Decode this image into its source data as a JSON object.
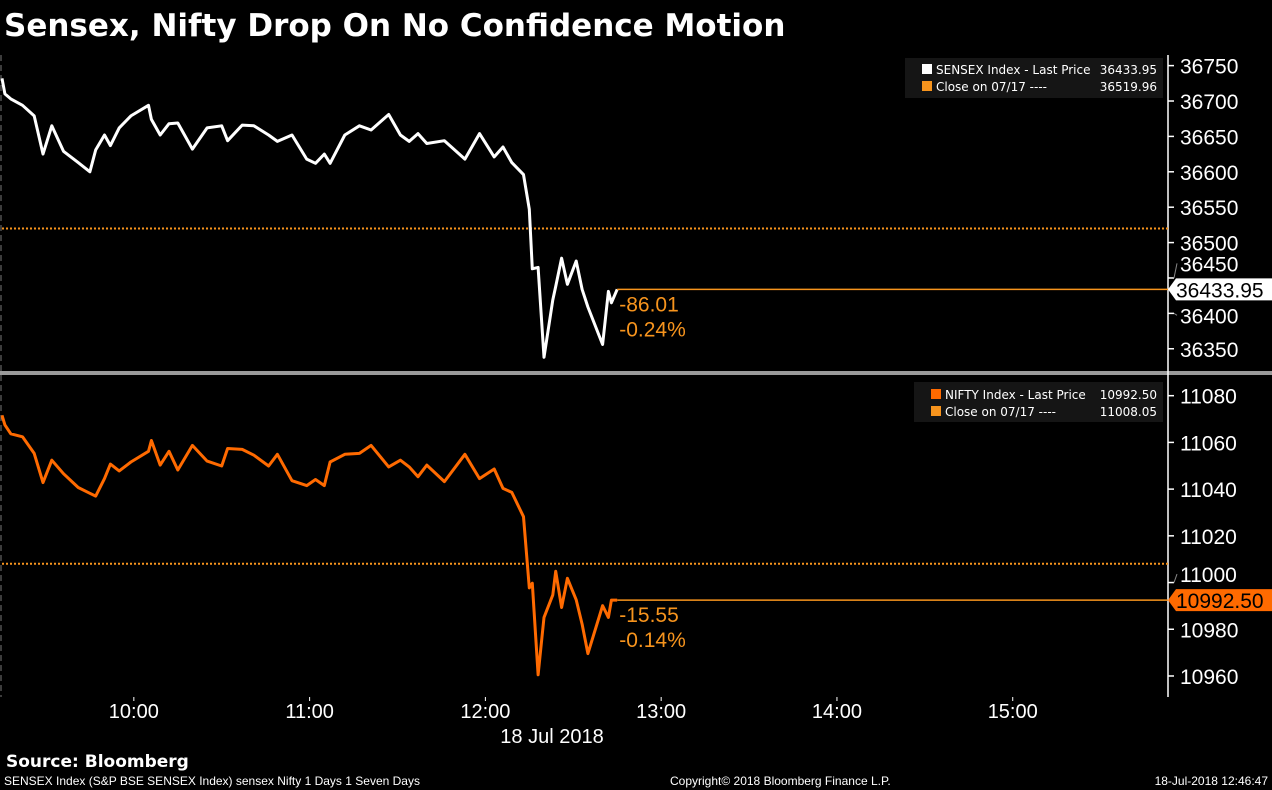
{
  "title": "Sensex, Nifty Drop On No Confidence Motion",
  "source": "Source: Bloomberg",
  "footer": {
    "left": "SENSEX Index (S&P BSE SENSEX Index) sensex Nifty 1 Days 1 Seven Days",
    "center": "Copyright© 2018 Bloomberg Finance L.P.",
    "right": "18-Jul-2018 12:46:47"
  },
  "colors": {
    "sensex_line": "#ffffff",
    "nifty_line": "#ff6a00",
    "close_line": "#f7941d",
    "change_text": "#f7941d",
    "legend_bg": "#151515"
  },
  "chart_data": [
    {
      "type": "line",
      "panel": "top",
      "xlim": [
        "09:15",
        "15:53"
      ],
      "ylim": [
        36320,
        36765
      ],
      "yticks": [
        "36750",
        "36700",
        "36650",
        "36600",
        "36550",
        "36500",
        "36450",
        "36400",
        "36350"
      ],
      "xticks": [
        "10:00",
        "11:00",
        "12:00",
        "13:00",
        "14:00",
        "15:00"
      ],
      "xlabel": "18 Jul 2018",
      "legend": {
        "placement": "top-right",
        "entries": [
          {
            "label": "SENSEX Index - Last Price",
            "value": "36433.95",
            "color": "#ffffff"
          },
          {
            "label": "Close on 07/17 ----",
            "value": "36519.96",
            "color": "#f7941d"
          }
        ]
      },
      "last_price": 36433.95,
      "last_price_label": "36433.95",
      "close": 36519.96,
      "change": "-86.01",
      "change_pct": "-0.24%",
      "x": [
        "09:15",
        "09:16",
        "09:18",
        "09:22",
        "09:26",
        "09:29",
        "09:32",
        "09:36",
        "09:41",
        "09:45",
        "09:47",
        "09:50",
        "09:52",
        "09:55",
        "09:59",
        "10:05",
        "10:06",
        "10:09",
        "10:12",
        "10:15",
        "10:20",
        "10:25",
        "10:30",
        "10:32",
        "10:37",
        "10:41",
        "10:46",
        "10:49",
        "10:54",
        "10:59",
        "11:02",
        "11:05",
        "11:07",
        "11:12",
        "11:17",
        "11:21",
        "11:27",
        "11:31",
        "11:34",
        "11:37",
        "11:40",
        "11:46",
        "11:53",
        "11:58",
        "12:03",
        "12:06",
        "12:09",
        "12:13",
        "12:15",
        "12:16",
        "12:18",
        "12:20",
        "12:23",
        "12:24",
        "12:26",
        "12:28",
        "12:31",
        "12:33",
        "12:35",
        "12:40",
        "12:42",
        "12:43",
        "12:45"
      ],
      "series": [
        {
          "name": "SENSEX Index",
          "values": [
            36732,
            36710,
            36703,
            36694,
            36679,
            36625,
            36665,
            36629,
            36613,
            36600,
            36631,
            36652,
            36637,
            36662,
            36679,
            36694,
            36674,
            36652,
            36668,
            36669,
            36632,
            36662,
            36665,
            36644,
            36666,
            36665,
            36652,
            36643,
            36652,
            36618,
            36612,
            36625,
            36612,
            36652,
            36665,
            36659,
            36681,
            36652,
            36643,
            36654,
            36640,
            36644,
            36618,
            36654,
            36621,
            36635,
            36613,
            36596,
            36547,
            36463,
            36465,
            36338,
            36419,
            36438,
            36478,
            36441,
            36474,
            36434,
            36409,
            36356,
            36431,
            36415,
            36433.95
          ]
        }
      ]
    },
    {
      "type": "line",
      "panel": "bottom",
      "xlim": [
        "09:15",
        "15:53"
      ],
      "ylim": [
        10951,
        11088
      ],
      "yticks": [
        "11080",
        "11060",
        "11040",
        "11020",
        "11000",
        "10980",
        "10960"
      ],
      "legend": {
        "placement": "top-right",
        "entries": [
          {
            "label": "NIFTY Index - Last Price",
            "value": "10992.50",
            "color": "#ff6a00"
          },
          {
            "label": "Close on 07/17 ----",
            "value": "11008.05",
            "color": "#f7941d"
          }
        ]
      },
      "last_price": 10992.5,
      "last_price_label": "10992.50",
      "close": 11008.05,
      "change": "-15.55",
      "change_pct": "-0.14%",
      "x": [
        "09:15",
        "09:16",
        "09:18",
        "09:22",
        "09:26",
        "09:29",
        "09:32",
        "09:36",
        "09:41",
        "09:45",
        "09:47",
        "09:50",
        "09:52",
        "09:55",
        "09:59",
        "10:05",
        "10:06",
        "10:09",
        "10:12",
        "10:15",
        "10:20",
        "10:25",
        "10:30",
        "10:32",
        "10:37",
        "10:41",
        "10:46",
        "10:49",
        "10:54",
        "10:59",
        "11:02",
        "11:05",
        "11:07",
        "11:12",
        "11:17",
        "11:21",
        "11:27",
        "11:31",
        "11:34",
        "11:37",
        "11:40",
        "11:46",
        "11:53",
        "11:58",
        "12:03",
        "12:06",
        "12:09",
        "12:13",
        "12:15",
        "12:16",
        "12:18",
        "12:20",
        "12:23",
        "12:24",
        "12:26",
        "12:28",
        "12:31",
        "12:33",
        "12:35",
        "12:40",
        "12:42",
        "12:43",
        "12:45"
      ],
      "series": [
        {
          "name": "NIFTY Index",
          "values": [
            11071.6,
            11067.5,
            11063.7,
            11062.4,
            11055.3,
            11042.8,
            11052.4,
            11046.6,
            11040.7,
            11038.2,
            11037.0,
            11044.5,
            11050.7,
            11047.8,
            11051.6,
            11056.2,
            11060.8,
            11050.3,
            11056.2,
            11048.2,
            11058.7,
            11052.0,
            11049.9,
            11057.4,
            11057.0,
            11054.5,
            11049.9,
            11054.9,
            11043.6,
            11041.5,
            11044.1,
            11041.5,
            11051.6,
            11054.9,
            11055.3,
            11058.7,
            11049.5,
            11052.4,
            11049.5,
            11045.3,
            11050.3,
            11043.2,
            11054.9,
            11044.5,
            11048.6,
            11040.3,
            11038.6,
            11028.2,
            10997.7,
            10999.7,
            10960.5,
            10985.1,
            10994.7,
            11004.8,
            10989.3,
            11001.8,
            10992.6,
            10982.2,
            10969.6,
            10990.1,
            10985.1,
            10992.5,
            10992.5
          ]
        }
      ]
    }
  ]
}
